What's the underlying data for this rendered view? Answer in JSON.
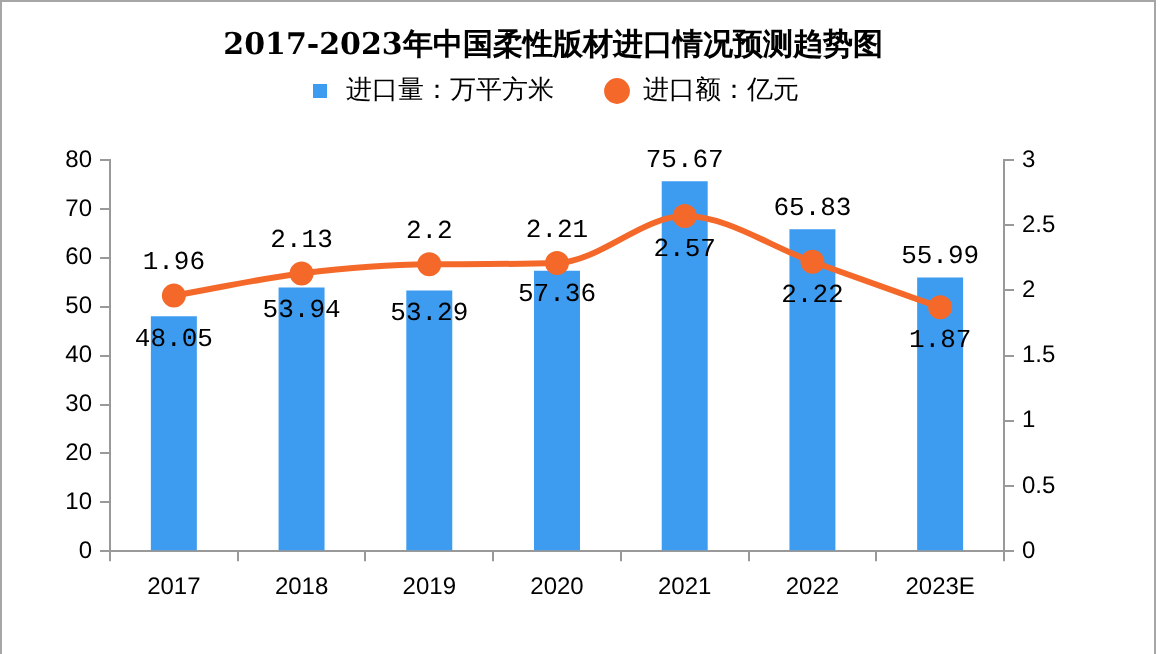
{
  "chart_data": {
    "type": "bar",
    "title": "2017-2023年中国柔性版材进口情况预测趋势图",
    "categories": [
      "2017",
      "2018",
      "2019",
      "2020",
      "2021",
      "2022",
      "2023E"
    ],
    "series": [
      {
        "name": "进口量：万平方米",
        "color": "#3d9cf0",
        "values": [
          48.05,
          53.94,
          53.29,
          57.36,
          75.67,
          65.83,
          55.99
        ]
      },
      {
        "name": "进口额：亿元",
        "type": "line",
        "axis": "y2",
        "color": "#f4692a",
        "values": [
          1.96,
          2.13,
          2.2,
          2.21,
          2.57,
          2.22,
          1.87
        ]
      }
    ],
    "ylim": [
      0,
      80
    ],
    "yticks": [
      0,
      10,
      20,
      30,
      40,
      50,
      60,
      70,
      80
    ],
    "y2lim": [
      0,
      3
    ],
    "y2ticks": [
      0,
      0.5,
      1,
      1.5,
      2,
      2.5,
      3
    ],
    "data_labels": true,
    "legend": "top",
    "grid": false,
    "marker": "circle"
  }
}
